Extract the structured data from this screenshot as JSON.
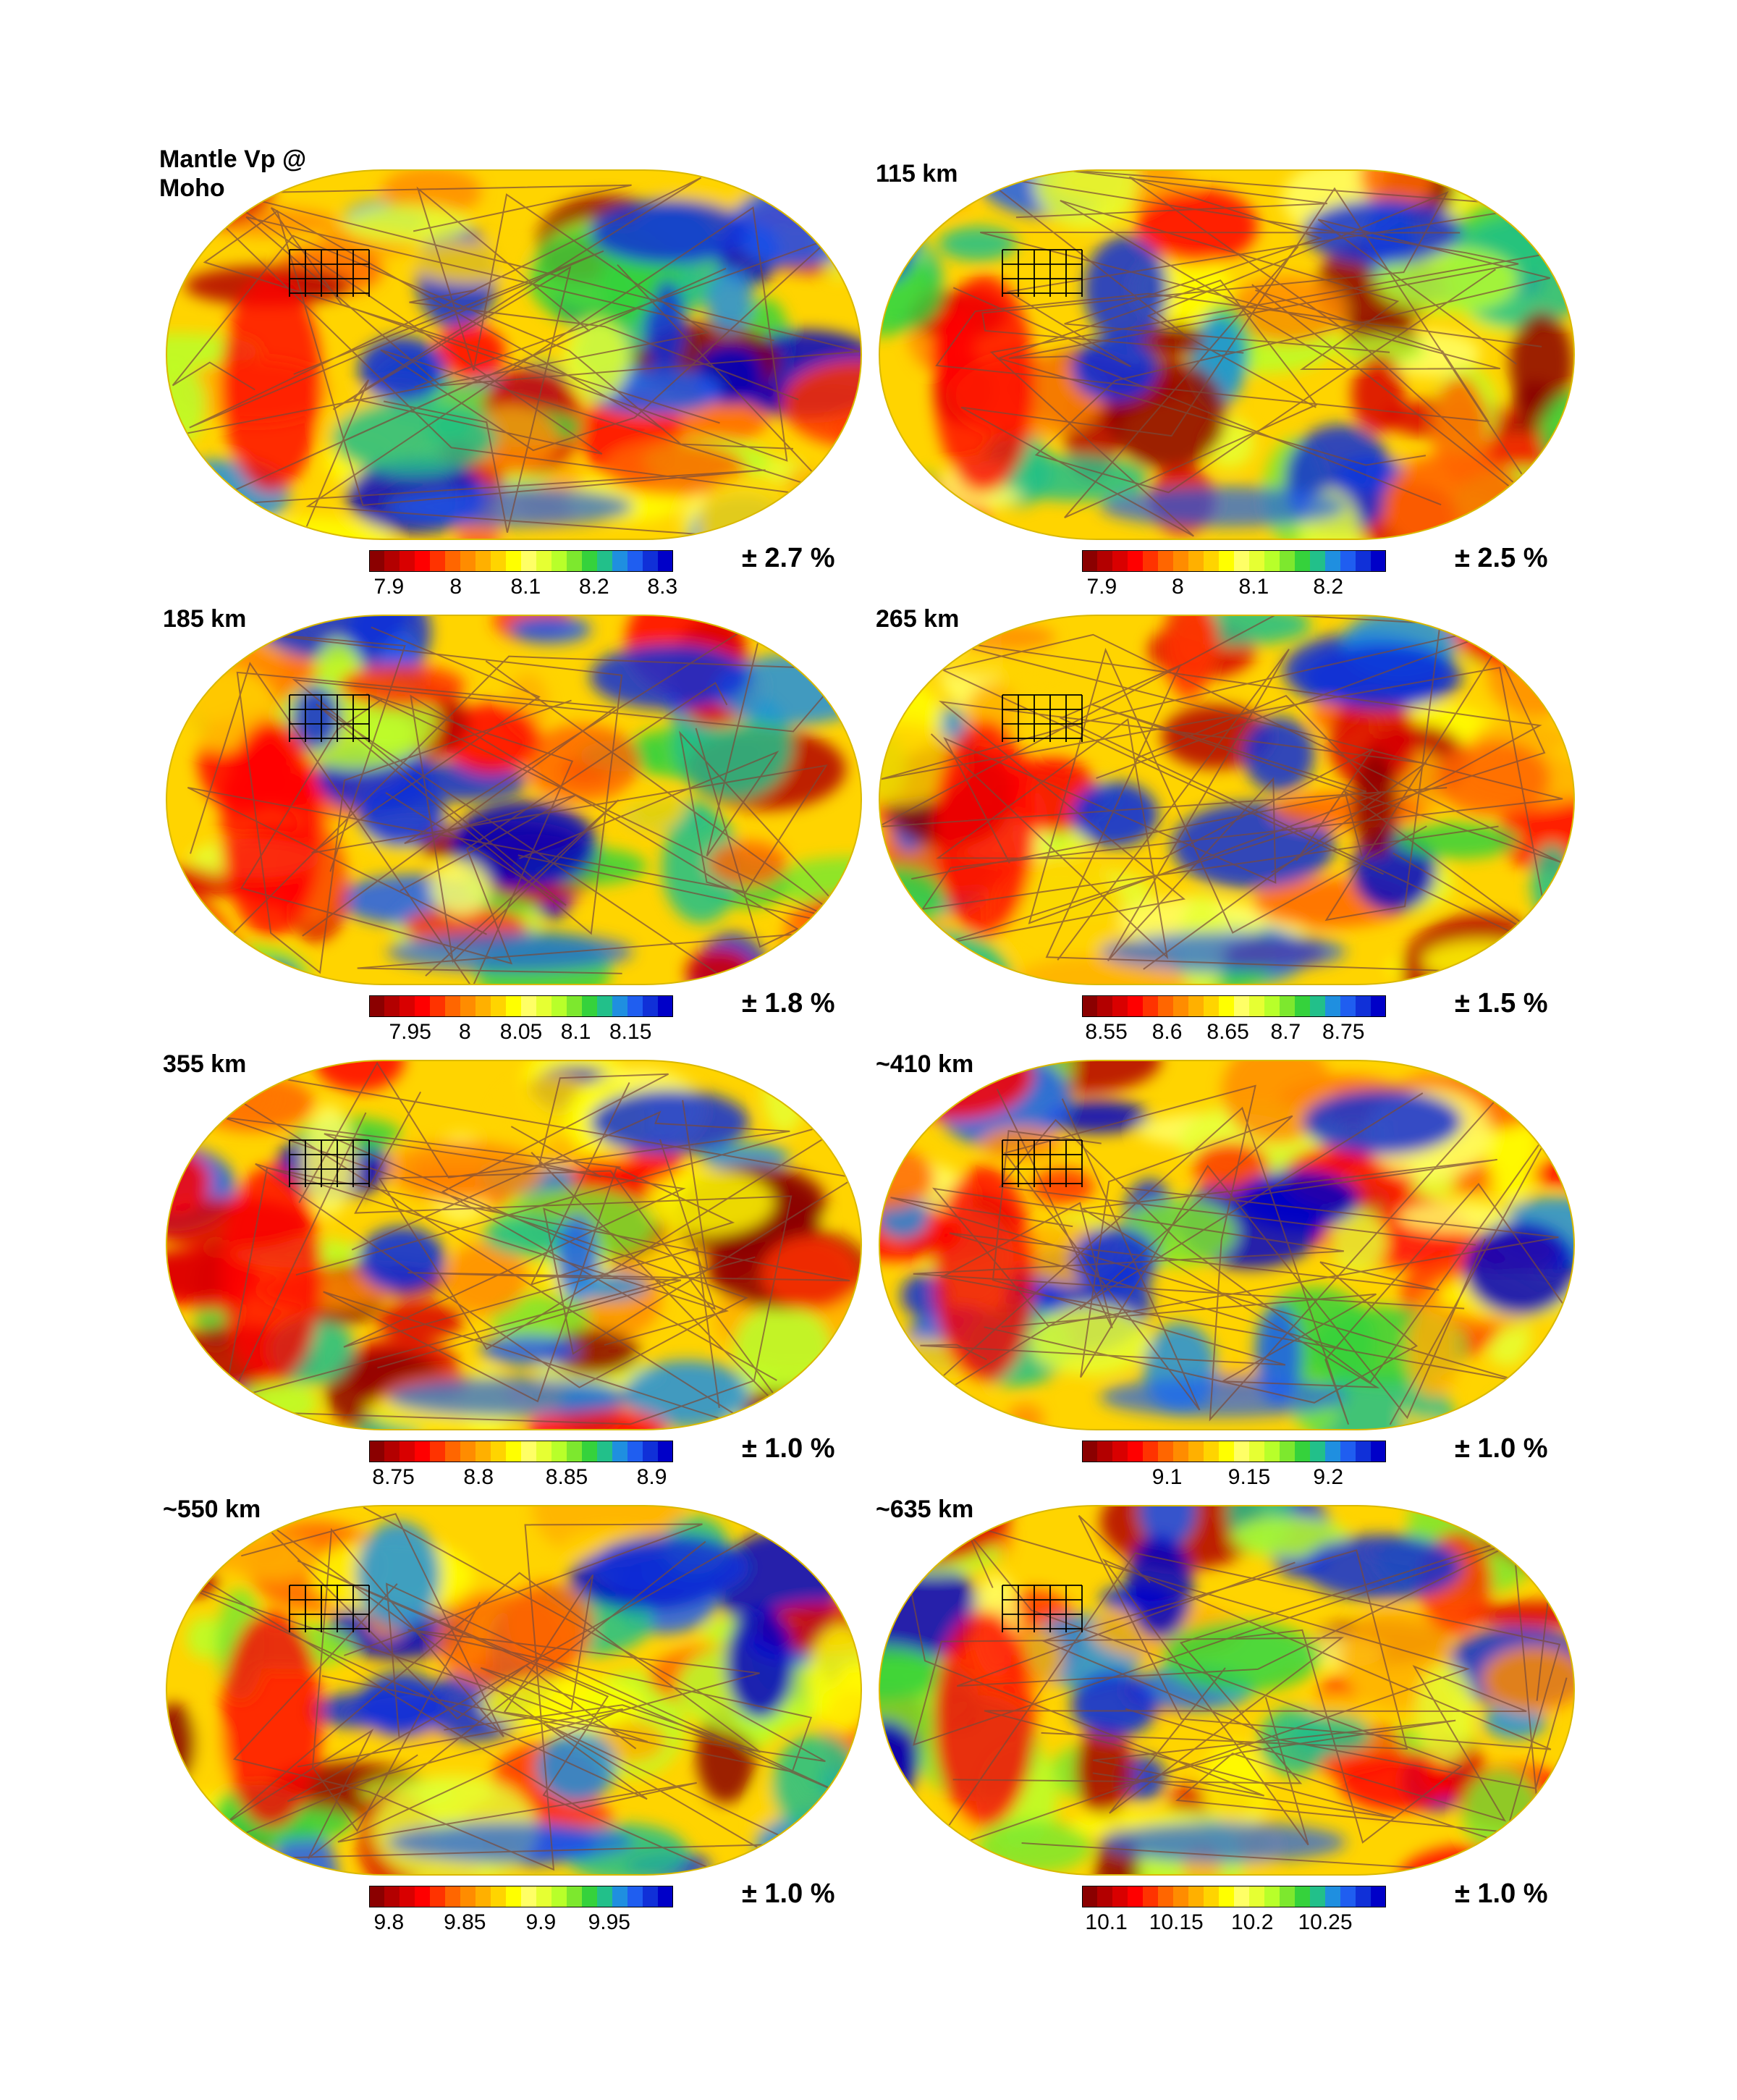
{
  "palette": [
    "#8b0000",
    "#b30000",
    "#d90000",
    "#ff0000",
    "#ff3300",
    "#ff6600",
    "#ff8c00",
    "#ffb000",
    "#ffd400",
    "#ffff00",
    "#ffff66",
    "#e6ff33",
    "#b8ff2a",
    "#7de82e",
    "#35d23c",
    "#22c08a",
    "#1f8fe0",
    "#1f5ef0",
    "#1030d8",
    "#0000c8"
  ],
  "panels": [
    {
      "depth_label": "Mantle Vp @\nMoho",
      "colorbar_ticks": [
        {
          "label": "7.9",
          "pos": 0.065
        },
        {
          "label": "8",
          "pos": 0.285
        },
        {
          "label": "8.1",
          "pos": 0.515
        },
        {
          "label": "8.2",
          "pos": 0.74
        },
        {
          "label": "8.3",
          "pos": 0.965
        }
      ],
      "percent_range": "± 2.7 %",
      "seed": 11
    },
    {
      "depth_label": "115 km",
      "colorbar_ticks": [
        {
          "label": "7.9",
          "pos": 0.065
        },
        {
          "label": "8",
          "pos": 0.315
        },
        {
          "label": "8.1",
          "pos": 0.565
        },
        {
          "label": "8.2",
          "pos": 0.81
        }
      ],
      "percent_range": "± 2.5 %",
      "seed": 23
    },
    {
      "depth_label": "185 km",
      "colorbar_ticks": [
        {
          "label": "7.95",
          "pos": 0.135
        },
        {
          "label": "8",
          "pos": 0.315
        },
        {
          "label": "8.05",
          "pos": 0.5
        },
        {
          "label": "8.1",
          "pos": 0.68
        },
        {
          "label": "8.15",
          "pos": 0.86
        }
      ],
      "percent_range": "± 1.8 %",
      "seed": 37
    },
    {
      "depth_label": "265 km",
      "colorbar_ticks": [
        {
          "label": "8.55",
          "pos": 0.08
        },
        {
          "label": "8.6",
          "pos": 0.28
        },
        {
          "label": "8.65",
          "pos": 0.48
        },
        {
          "label": "8.7",
          "pos": 0.67
        },
        {
          "label": "8.75",
          "pos": 0.86
        }
      ],
      "percent_range": "± 1.5 %",
      "seed": 41
    },
    {
      "depth_label": "355 km",
      "colorbar_ticks": [
        {
          "label": "8.75",
          "pos": 0.08
        },
        {
          "label": "8.8",
          "pos": 0.36
        },
        {
          "label": "8.85",
          "pos": 0.65
        },
        {
          "label": "8.9",
          "pos": 0.93
        }
      ],
      "percent_range": "± 1.0 %",
      "seed": 53
    },
    {
      "depth_label": "~410 km",
      "colorbar_ticks": [
        {
          "label": "9.1",
          "pos": 0.28
        },
        {
          "label": "9.15",
          "pos": 0.55
        },
        {
          "label": "9.2",
          "pos": 0.81
        }
      ],
      "percent_range": "± 1.0 %",
      "seed": 67
    },
    {
      "depth_label": "~550 km",
      "colorbar_ticks": [
        {
          "label": "9.8",
          "pos": 0.065
        },
        {
          "label": "9.85",
          "pos": 0.315
        },
        {
          "label": "9.9",
          "pos": 0.565
        },
        {
          "label": "9.95",
          "pos": 0.79
        }
      ],
      "percent_range": "± 1.0 %",
      "seed": 79
    },
    {
      "depth_label": "~635 km",
      "colorbar_ticks": [
        {
          "label": "10.1",
          "pos": 0.08
        },
        {
          "label": "10.15",
          "pos": 0.31
        },
        {
          "label": "10.2",
          "pos": 0.56
        },
        {
          "label": "10.25",
          "pos": 0.8
        }
      ],
      "percent_range": "± 1.0 %",
      "seed": 97
    }
  ]
}
